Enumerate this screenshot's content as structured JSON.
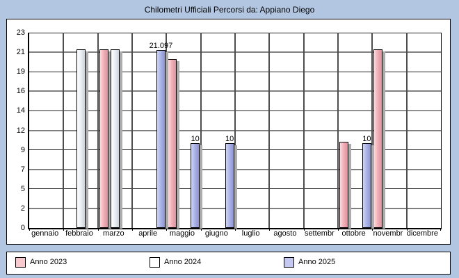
{
  "title": "Chilometri Ufficiali Percorsi da: Appiano Diego",
  "chart_data": {
    "type": "bar",
    "title": "Chilometri Ufficiali Percorsi da: Appiano Diego",
    "xlabel": "",
    "ylabel": "",
    "ylim": [
      0,
      23.333
    ],
    "grid": true,
    "legend_position": "bottom",
    "categories": [
      "gennaio",
      "febbraio",
      "marzo",
      "aprile",
      "maggio",
      "giugno",
      "luglio",
      "agosto",
      "settembr",
      "ottobre",
      "novembr",
      "dicembre"
    ],
    "y_ticks": [
      {
        "v": 0,
        "label": "0"
      },
      {
        "v": 2.333,
        "label": "2"
      },
      {
        "v": 4.667,
        "label": "5"
      },
      {
        "v": 7,
        "label": "7"
      },
      {
        "v": 9.333,
        "label": "9"
      },
      {
        "v": 11.667,
        "label": "12"
      },
      {
        "v": 14,
        "label": "14"
      },
      {
        "v": 16.333,
        "label": "16"
      },
      {
        "v": 18.667,
        "label": "19"
      },
      {
        "v": 21,
        "label": "21"
      },
      {
        "v": 23.333,
        "label": "23"
      }
    ],
    "series": [
      {
        "name": "Anno 2023",
        "swatch": "#f8c9ce",
        "fill": [
          "#fadbde",
          "#efadb4",
          "#e0929c"
        ],
        "points": [
          {
            "month": "marzo",
            "month_index": 2,
            "value": 21.2
          },
          {
            "month": "maggio",
            "month_index": 4,
            "value": 20
          },
          {
            "month": "ottobre",
            "month_index": 9,
            "value": 10.1
          },
          {
            "month": "novembr",
            "month_index": 10,
            "value": 21.2
          }
        ]
      },
      {
        "name": "Anno 2024",
        "swatch": "#ffffff",
        "fill": [
          "#ffffff",
          "#eaeef3",
          "#ccd3dc"
        ],
        "points": [
          {
            "month": "febbraio",
            "month_index": 1,
            "value": 21.2
          },
          {
            "month": "marzo",
            "month_index": 2,
            "value": 21.2
          }
        ]
      },
      {
        "name": "Anno 2025",
        "swatch": "#c5c9f1",
        "fill": [
          "#ced5f6",
          "#a9b1e4",
          "#8c94d5"
        ],
        "points": [
          {
            "month": "aprile",
            "month_index": 3,
            "value": 21.097,
            "label": "21.097"
          },
          {
            "month": "maggio",
            "month_index": 4,
            "value": 10,
            "label": "10"
          },
          {
            "month": "giugno",
            "month_index": 5,
            "value": 10,
            "label": "10"
          },
          {
            "month": "ottobre",
            "month_index": 9,
            "value": 10,
            "label": "10"
          }
        ]
      }
    ]
  },
  "colors": {
    "background": "#b2c6e1",
    "panel": "#ffffff",
    "grid_major": "#7f7f7f",
    "grid_minor": "#1c1c1c",
    "bar_shadow": "#acacac"
  }
}
